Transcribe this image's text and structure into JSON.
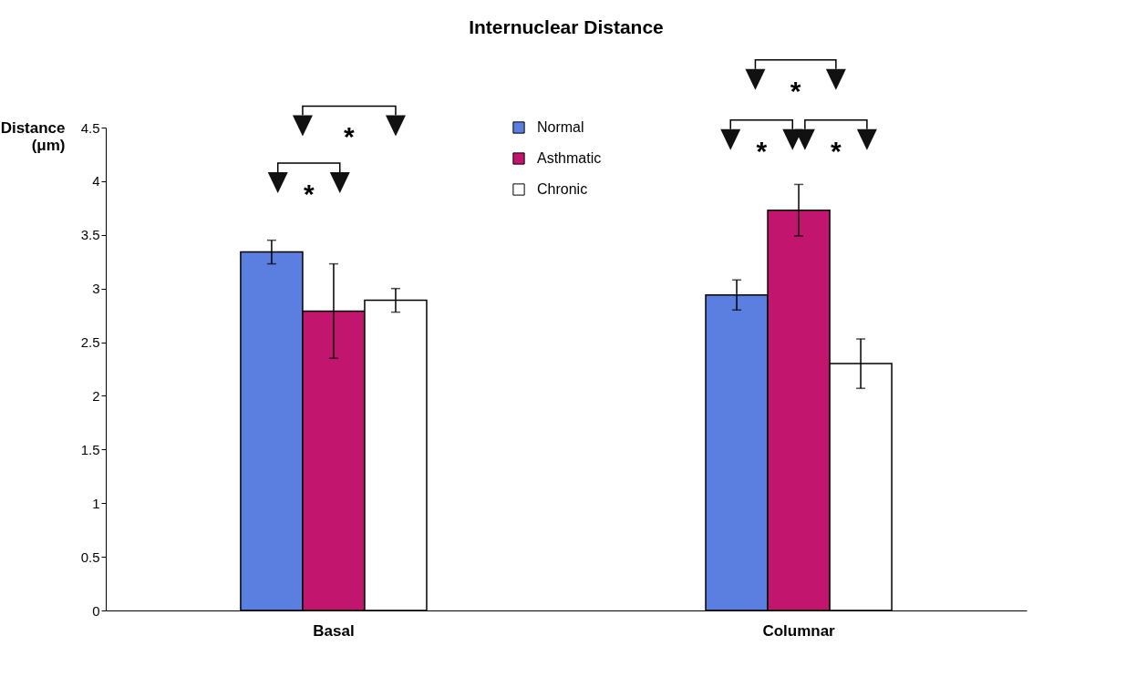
{
  "chart_data": {
    "type": "bar",
    "title": "Internuclear Distance",
    "ylabel": "Distance\n(μm)",
    "categories": [
      "Basal",
      "Columnar"
    ],
    "series": [
      {
        "name": "Normal",
        "color": "#5b7fe0",
        "values": [
          3.34,
          2.94
        ],
        "errors": [
          0.11,
          0.14
        ]
      },
      {
        "name": "Asthmatic",
        "color": "#c2166e",
        "values": [
          2.79,
          3.73
        ],
        "errors": [
          0.44,
          0.24
        ]
      },
      {
        "name": "Chronic",
        "color": "#ffffff",
        "values": [
          2.89,
          2.3
        ],
        "errors": [
          0.11,
          0.23
        ]
      }
    ],
    "ylim": [
      0,
      4.5
    ],
    "yticks": [
      0,
      0.5,
      1,
      1.5,
      2,
      2.5,
      3,
      3.5,
      4,
      4.5
    ],
    "grid": false,
    "legend": "top",
    "annotations": [
      "*",
      "*",
      "*",
      "*",
      "*"
    ]
  }
}
